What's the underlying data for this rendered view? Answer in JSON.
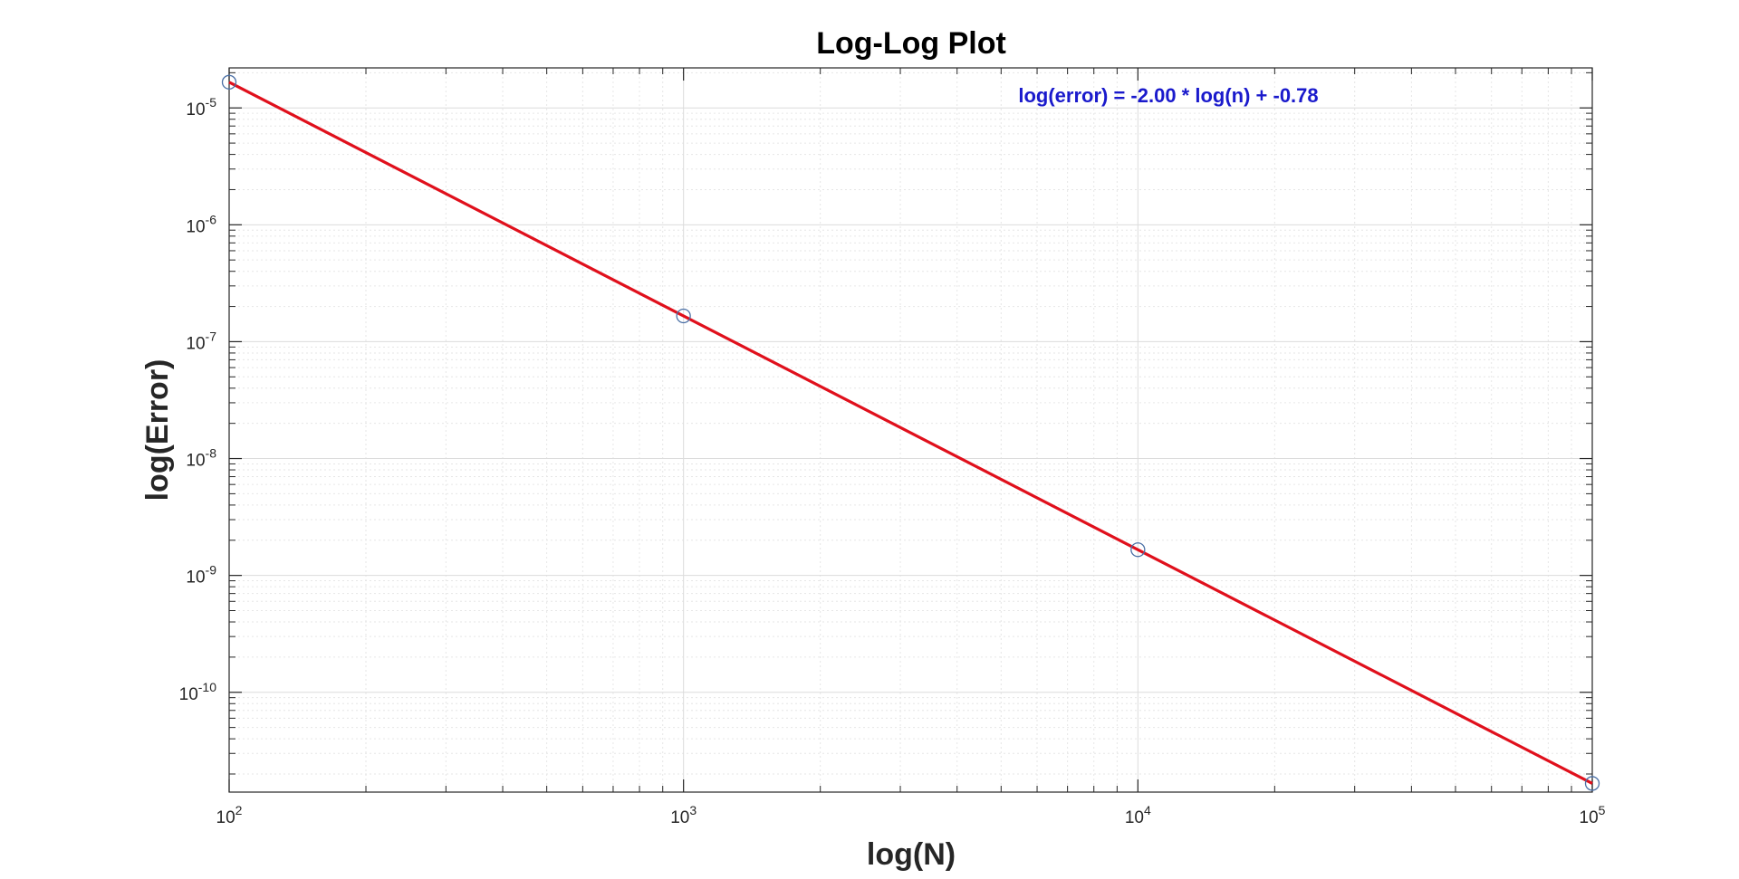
{
  "chart_data": {
    "type": "line",
    "title": "Log-Log Plot",
    "xlabel": "log(N)",
    "ylabel": "log(Error)",
    "xscale": "log",
    "yscale": "log",
    "xlim": [
      100,
      100000
    ],
    "ylim": [
      1.4e-11,
      2.2e-05
    ],
    "grid": true,
    "minor_grid": true,
    "x_ticks": [
      {
        "base": "10",
        "exp": "2",
        "value": 100
      },
      {
        "base": "10",
        "exp": "3",
        "value": 1000
      },
      {
        "base": "10",
        "exp": "4",
        "value": 10000
      },
      {
        "base": "10",
        "exp": "5",
        "value": 100000
      }
    ],
    "y_ticks": [
      {
        "base": "10",
        "exp": "-5",
        "value": 1e-05
      },
      {
        "base": "10",
        "exp": "-6",
        "value": 1e-06
      },
      {
        "base": "10",
        "exp": "-7",
        "value": 1e-07
      },
      {
        "base": "10",
        "exp": "-8",
        "value": 1e-08
      },
      {
        "base": "10",
        "exp": "-9",
        "value": 1e-09
      },
      {
        "base": "10",
        "exp": "-10",
        "value": 1e-10
      }
    ],
    "series": [
      {
        "style": "markers",
        "marker": "circle",
        "color": "#4a6fa5",
        "x": [
          100,
          1000,
          10000,
          100000
        ],
        "y": [
          1.66e-05,
          1.66e-07,
          1.66e-09,
          1.66e-11
        ]
      },
      {
        "style": "line",
        "color": "#e0101c",
        "x": [
          100,
          100000
        ],
        "y": [
          1.66e-05,
          1.66e-11
        ]
      }
    ],
    "annotation": {
      "text": "log(error) = -2.00 * log(n) + -0.78",
      "color": "#1a1acc"
    }
  }
}
